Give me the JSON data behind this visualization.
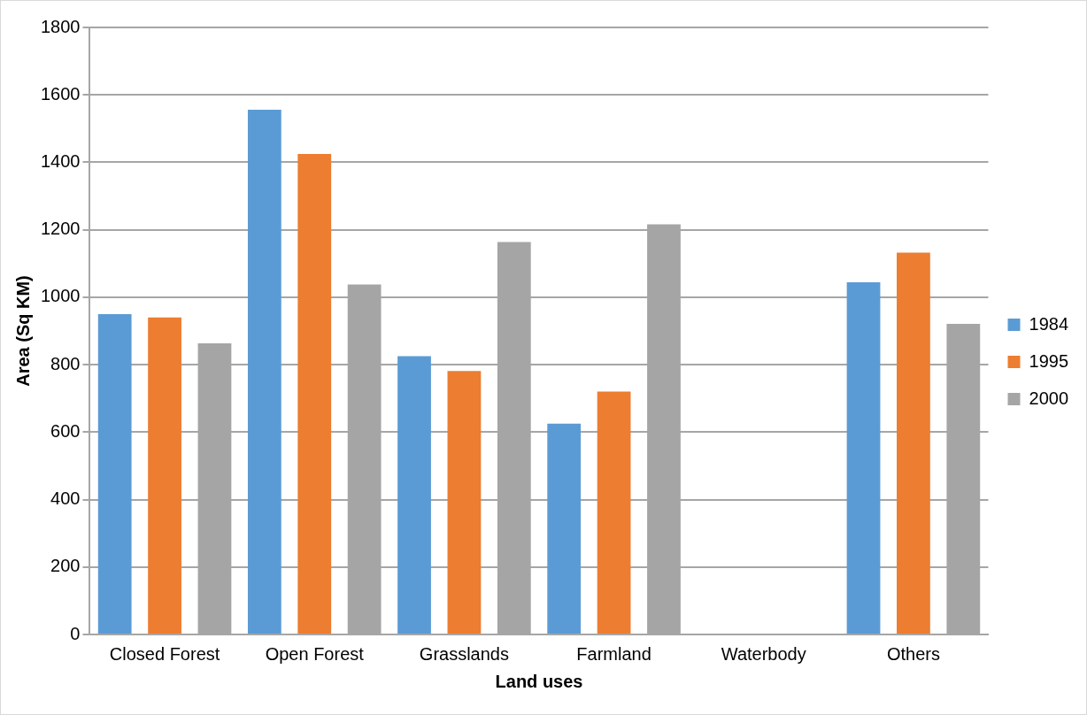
{
  "chart_data": {
    "type": "bar",
    "xlabel": "Land uses",
    "ylabel": "Area (Sq KM)",
    "categories": [
      "Closed Forest",
      "Open Forest",
      "Grasslands",
      "Farmland",
      "Waterbody",
      "Others"
    ],
    "series": [
      {
        "name": "1984",
        "color": "#5b9bd5",
        "values": [
          950,
          1556,
          825,
          625,
          null,
          1044
        ]
      },
      {
        "name": "1995",
        "color": "#ed7d31",
        "values": [
          940,
          1425,
          781,
          720,
          null,
          1132
        ]
      },
      {
        "name": "2000",
        "color": "#a5a5a5",
        "values": [
          863,
          1038,
          1164,
          1216,
          null,
          921
        ]
      }
    ],
    "ylim": [
      0,
      1800
    ],
    "yticks": [
      0,
      200,
      400,
      600,
      800,
      1000,
      1200,
      1400,
      1600,
      1800
    ],
    "grid": "y",
    "legend": "right"
  }
}
